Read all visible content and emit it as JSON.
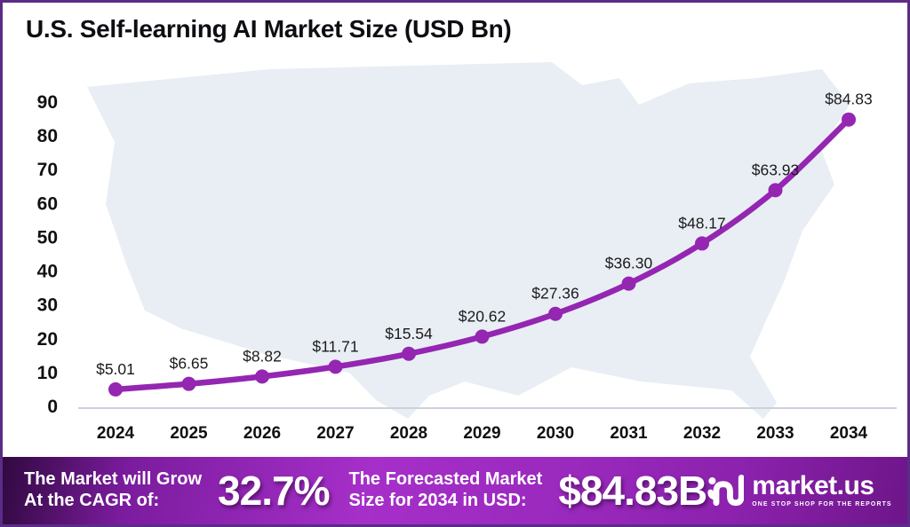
{
  "page": {
    "title": "U.S. Self-learning AI Market Size (USD Bn)"
  },
  "chart_data": {
    "type": "line",
    "title": "U.S. Self-learning AI Market Size (USD Bn)",
    "x": [
      "2024",
      "2025",
      "2026",
      "2027",
      "2028",
      "2029",
      "2030",
      "2031",
      "2032",
      "2033",
      "2034"
    ],
    "series": [
      {
        "name": "U.S. self-learning AI market size (USD Bn)",
        "values": [
          5.01,
          6.65,
          8.82,
          11.71,
          15.54,
          20.62,
          27.36,
          36.3,
          48.17,
          63.93,
          84.83
        ]
      }
    ],
    "point_labels": [
      "$5.01",
      "$6.65",
      "$8.82",
      "$11.71",
      "$15.54",
      "$20.62",
      "$27.36",
      "$36.30",
      "$48.17",
      "$63.93",
      "$84.83"
    ],
    "ylim": [
      0,
      90
    ],
    "yticks": [
      0,
      10,
      20,
      30,
      40,
      50,
      60,
      70,
      80,
      90
    ],
    "grid": false,
    "legend_position": "none",
    "line_color": "#9426b2",
    "background": "us-map-silhouette"
  },
  "banner": {
    "grow_line1": "The Market will Grow",
    "grow_line2": "At the CAGR of:",
    "cagr_value": "32.7%",
    "forecast_line1": "The Forecasted Market",
    "forecast_line2": "Size for 2034 in USD:",
    "forecast_value": "$84.83B",
    "brand_name": "market.us",
    "brand_tagline": "ONE STOP SHOP FOR THE REPORTS"
  },
  "colors": {
    "line": "#9426b2",
    "map_fill": "#e9eef5",
    "axis_line": "#cdd2da",
    "border": "#5b2c87",
    "banner_start": "#30093f",
    "banner_mid": "#a62fc9",
    "banner_end": "#6d1588"
  }
}
